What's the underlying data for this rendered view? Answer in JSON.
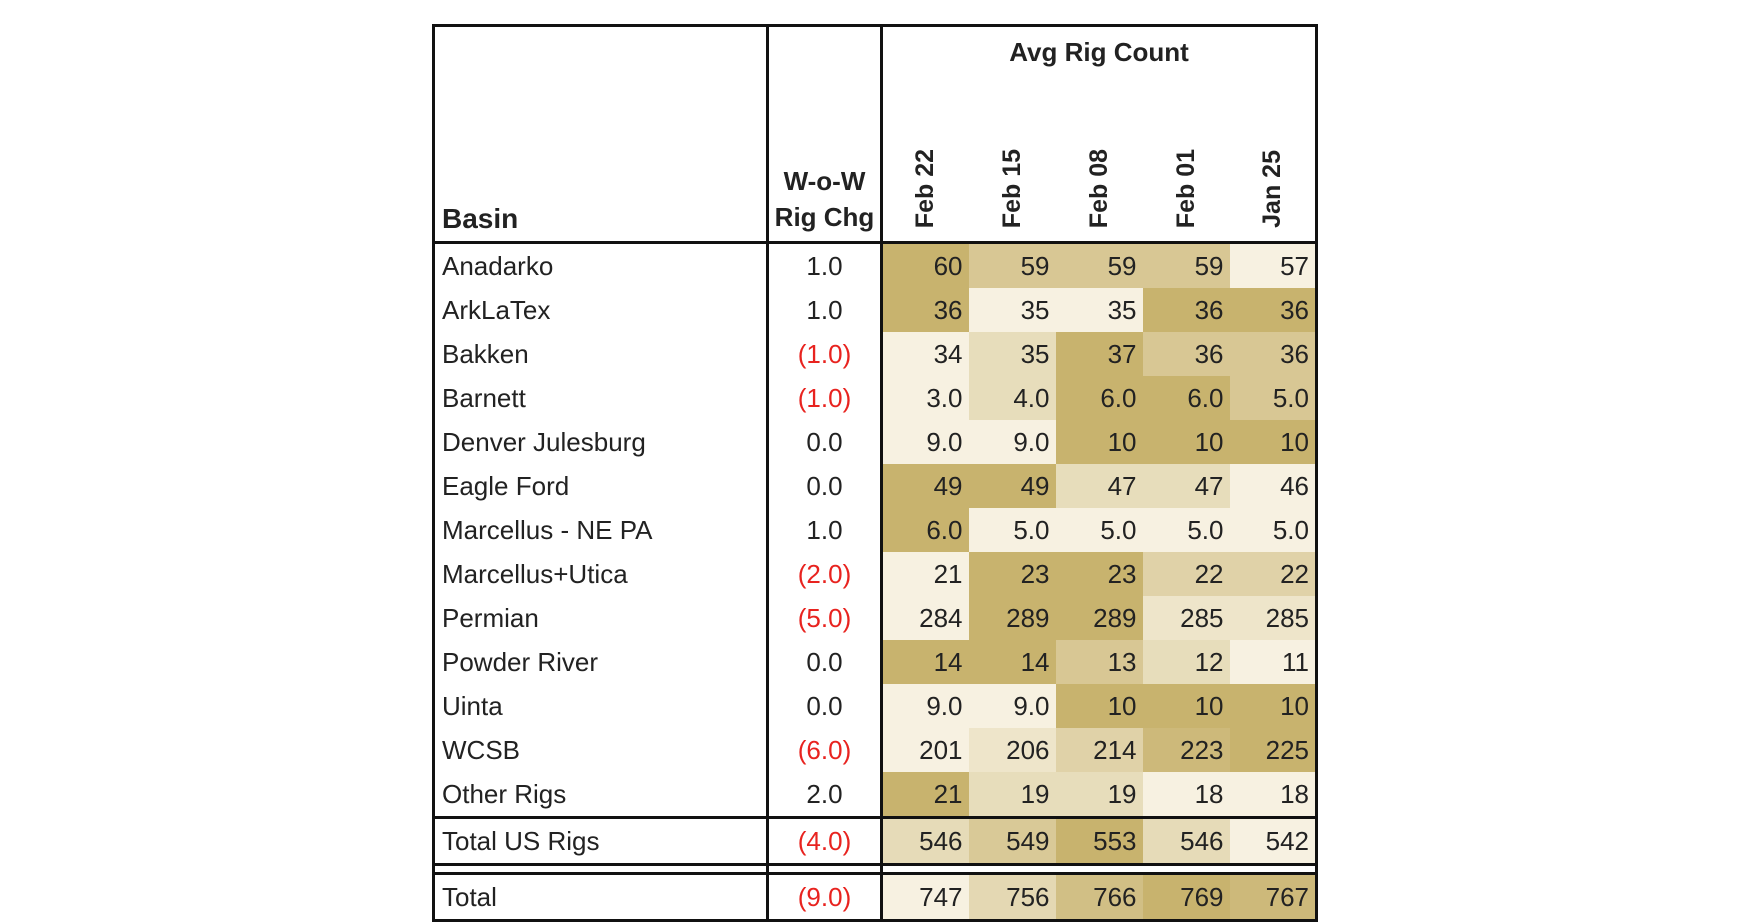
{
  "chart_data": {
    "type": "table",
    "title": "Avg Rig Count",
    "columns": {
      "basin": "Basin",
      "wow_line1": "W-o-W",
      "wow_line2": "Rig Chg",
      "weeks": [
        "Feb 22",
        "Feb 15",
        "Feb 08",
        "Feb 01",
        "Jan 25"
      ]
    },
    "rows": [
      {
        "basin": "Anadarko",
        "chg": "1.0",
        "negative": false,
        "values": [
          "60",
          "59",
          "59",
          "59",
          "57"
        ],
        "shade": [
          1.0,
          0.67,
          0.67,
          0.67,
          0.0
        ]
      },
      {
        "basin": "ArkLaTex",
        "chg": "1.0",
        "negative": false,
        "values": [
          "36",
          "35",
          "35",
          "36",
          "36"
        ],
        "shade": [
          1.0,
          0.0,
          0.0,
          1.0,
          1.0
        ]
      },
      {
        "basin": "Bakken",
        "chg": "(1.0)",
        "negative": true,
        "values": [
          "34",
          "35",
          "37",
          "36",
          "36"
        ],
        "shade": [
          0.0,
          0.33,
          1.0,
          0.67,
          0.67
        ]
      },
      {
        "basin": "Barnett",
        "chg": "(1.0)",
        "negative": true,
        "values": [
          "3.0",
          "4.0",
          "6.0",
          "6.0",
          "5.0"
        ],
        "shade": [
          0.0,
          0.33,
          1.0,
          1.0,
          0.67
        ]
      },
      {
        "basin": "Denver Julesburg",
        "chg": "0.0",
        "negative": false,
        "values": [
          "9.0",
          "9.0",
          "10",
          "10",
          "10"
        ],
        "shade": [
          0.0,
          0.0,
          1.0,
          1.0,
          1.0
        ]
      },
      {
        "basin": "Eagle Ford",
        "chg": "0.0",
        "negative": false,
        "values": [
          "49",
          "49",
          "47",
          "47",
          "46"
        ],
        "shade": [
          1.0,
          1.0,
          0.33,
          0.33,
          0.0
        ]
      },
      {
        "basin": "Marcellus - NE PA",
        "chg": "1.0",
        "negative": false,
        "values": [
          "6.0",
          "5.0",
          "5.0",
          "5.0",
          "5.0"
        ],
        "shade": [
          1.0,
          0.0,
          0.0,
          0.0,
          0.0
        ]
      },
      {
        "basin": "Marcellus+Utica",
        "chg": "(2.0)",
        "negative": true,
        "values": [
          "21",
          "23",
          "23",
          "22",
          "22"
        ],
        "shade": [
          0.0,
          1.0,
          1.0,
          0.5,
          0.5
        ]
      },
      {
        "basin": "Permian",
        "chg": "(5.0)",
        "negative": true,
        "values": [
          "284",
          "289",
          "289",
          "285",
          "285"
        ],
        "shade": [
          0.0,
          1.0,
          1.0,
          0.2,
          0.2
        ]
      },
      {
        "basin": "Powder River",
        "chg": "0.0",
        "negative": false,
        "values": [
          "14",
          "14",
          "13",
          "12",
          "11"
        ],
        "shade": [
          1.0,
          1.0,
          0.67,
          0.33,
          0.0
        ]
      },
      {
        "basin": "Uinta",
        "chg": "0.0",
        "negative": false,
        "values": [
          "9.0",
          "9.0",
          "10",
          "10",
          "10"
        ],
        "shade": [
          0.0,
          0.0,
          1.0,
          1.0,
          1.0
        ]
      },
      {
        "basin": "WCSB",
        "chg": "(6.0)",
        "negative": true,
        "values": [
          "201",
          "206",
          "214",
          "223",
          "225"
        ],
        "shade": [
          0.0,
          0.2,
          0.5,
          0.9,
          1.0
        ]
      },
      {
        "basin": "Other Rigs",
        "chg": "2.0",
        "negative": false,
        "values": [
          "21",
          "19",
          "19",
          "18",
          "18"
        ],
        "shade": [
          1.0,
          0.33,
          0.33,
          0.0,
          0.0
        ]
      }
    ],
    "total_us": {
      "basin": "Total US Rigs",
      "chg": "(4.0)",
      "negative": true,
      "values": [
        "546",
        "549",
        "553",
        "546",
        "542"
      ],
      "shade": [
        0.36,
        0.64,
        1.0,
        0.36,
        0.0
      ]
    },
    "total": {
      "basin": "Total",
      "chg": "(9.0)",
      "negative": true,
      "values": [
        "747",
        "756",
        "766",
        "769",
        "767"
      ],
      "shade": [
        0.0,
        0.4,
        0.8,
        1.0,
        0.9
      ]
    },
    "colors": {
      "shade_low": "#f7f1e1",
      "shade_high": "#c8b36e",
      "negative_text": "#e8231f"
    }
  }
}
